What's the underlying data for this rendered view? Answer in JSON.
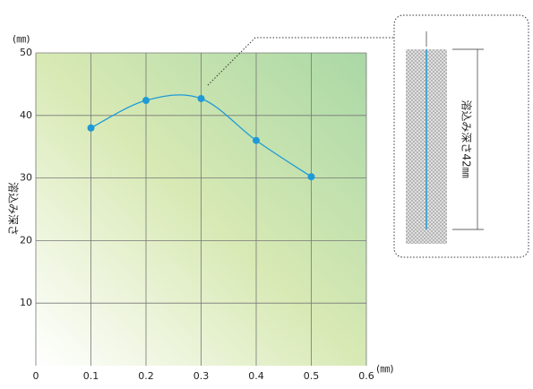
{
  "chart_data": {
    "type": "line",
    "x": [
      0.1,
      0.2,
      0.3,
      0.4,
      0.5
    ],
    "values": [
      38,
      42.4,
      42.7,
      36,
      30.2
    ],
    "color": "#1f9ad6",
    "xlim": [
      0,
      0.6
    ],
    "xticks": [
      0,
      0.1,
      0.2,
      0.3,
      0.4,
      0.5,
      0.6
    ],
    "ylim": [
      0,
      50
    ],
    "yticks": [
      10,
      20,
      30,
      40,
      50
    ],
    "x_unit": "(㎜)",
    "y_unit": "(㎜)",
    "y_label": "溶込み深さ",
    "annotation": "溶込み深さ42㎜",
    "grid": true
  }
}
